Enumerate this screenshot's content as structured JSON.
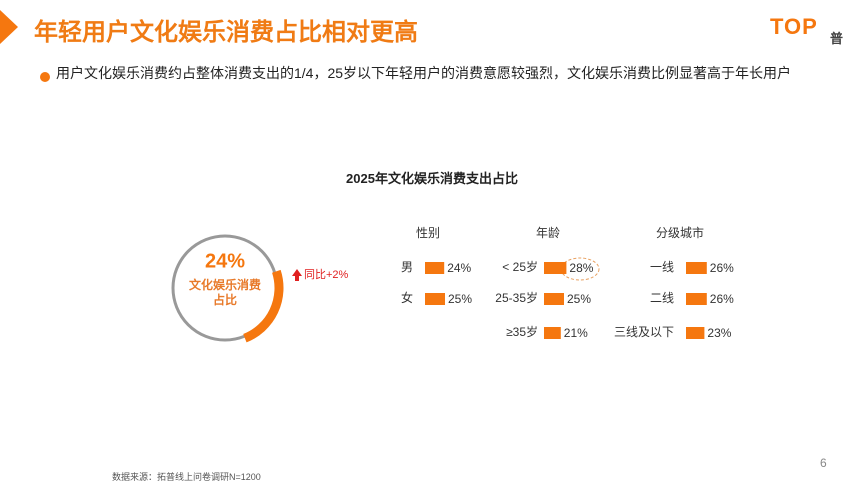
{
  "header": {
    "title": "年轻用户文化娱乐消费占比相对更高",
    "logo": "TOP",
    "logo_sub": "普"
  },
  "bullet": "用户文化娱乐消费约占整体消费支出的1/4，25岁以下年轻用户的消费意愿较强烈，文化娱乐消费比例显著高于年长用户",
  "figure_title": "2025年文化娱乐消费支出占比",
  "chart_data": [
    {
      "type": "pie",
      "values": [
        24
      ],
      "value_labels": [
        "24%"
      ],
      "center_label": "文化娱乐消费占比",
      "annotation": "同比+2%",
      "color": "#f5770f"
    },
    {
      "type": "bar",
      "title": "性别",
      "categories": [
        "男",
        "女"
      ],
      "values": [
        24,
        25
      ],
      "value_labels": [
        "24%",
        "25%"
      ],
      "color": "#f5770f"
    },
    {
      "type": "bar",
      "title": "年龄",
      "categories": [
        "< 25岁",
        "25-35岁",
        "≥35岁"
      ],
      "values": [
        28,
        25,
        21
      ],
      "value_labels": [
        "28%",
        "25%",
        "21%"
      ],
      "color": "#f5770f"
    },
    {
      "type": "bar",
      "title": "分级城市",
      "categories": [
        "一线",
        "二线",
        "三线及以下"
      ],
      "values": [
        26,
        26,
        23
      ],
      "value_labels": [
        "26%",
        "26%",
        "23%"
      ],
      "color": "#f5770f"
    }
  ],
  "source": "数据来源：拓普线上问卷调研N=1200",
  "page_number": "6"
}
